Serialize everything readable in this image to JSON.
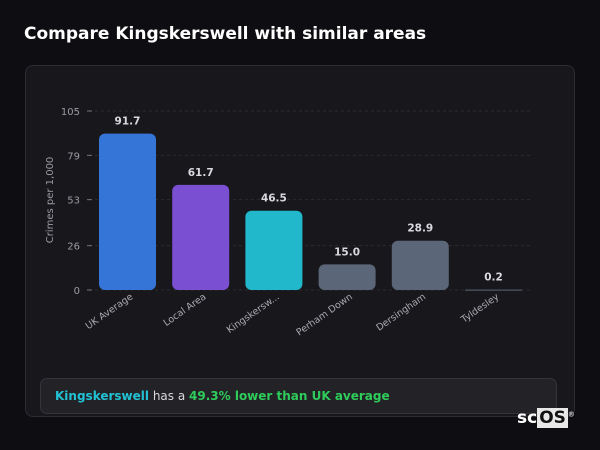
{
  "title": "Compare Kingskerswell with similar areas",
  "chart_data": {
    "type": "bar",
    "categories": [
      "UK Average",
      "Local Area",
      "Kingskersw...",
      "Perham Down",
      "Dersingham",
      "Tyldesley"
    ],
    "values": [
      91.7,
      61.7,
      46.5,
      15.0,
      28.9,
      0.2
    ],
    "value_labels": [
      "91.7",
      "61.7",
      "46.5",
      "15.0",
      "28.9",
      "0.2"
    ],
    "colors": [
      "#3575d8",
      "#7b4fd2",
      "#21b8cc",
      "#5b6678",
      "#5b6678",
      "#5b6678"
    ],
    "ylabel": "Crimes per 1,000",
    "xlabel": "",
    "ylim": [
      0,
      105
    ],
    "yticks": [
      0,
      26,
      53,
      79,
      105
    ],
    "grid": true
  },
  "summary": {
    "area": "Kingskerswell",
    "middle": " has a ",
    "highlight": "49.3% lower than UK average"
  },
  "logo": {
    "text_a": "sc",
    "text_b": "OS",
    "mark": "®"
  }
}
